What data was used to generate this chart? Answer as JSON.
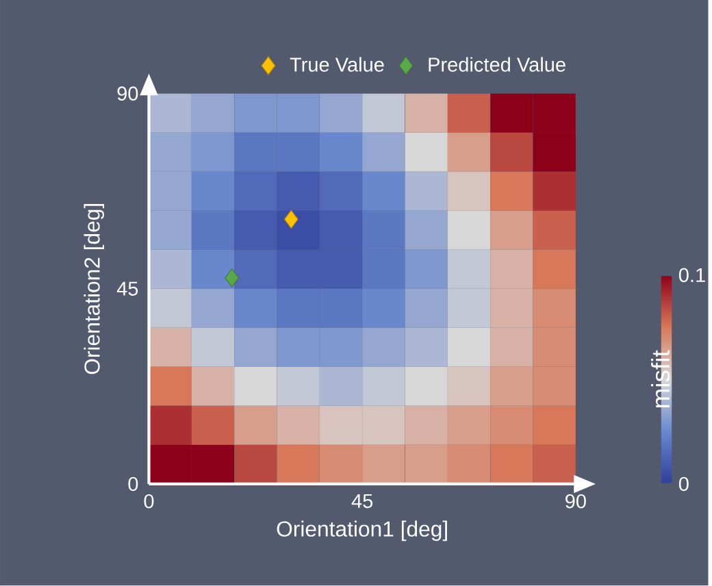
{
  "chart_data": {
    "type": "heatmap",
    "xlabel": "Orientation1 [deg]",
    "ylabel": "Orientation2 [deg]",
    "clabel": "misfit",
    "x": [
      4.5,
      13.5,
      22.5,
      31.5,
      40.5,
      49.5,
      58.5,
      67.5,
      76.5,
      85.5
    ],
    "xlim": [
      0,
      90
    ],
    "ylim": [
      0,
      90
    ],
    "xticks": [
      0,
      45,
      90
    ],
    "yticks": [
      0,
      45,
      90
    ],
    "clim": [
      0,
      0.1
    ],
    "cticks": [
      0,
      0.1
    ],
    "cells": [
      [
        0.04,
        0.035,
        0.03,
        0.03,
        0.035,
        0.045,
        0.06,
        0.08,
        0.1,
        0.1
      ],
      [
        0.035,
        0.03,
        0.02,
        0.02,
        0.025,
        0.035,
        0.05,
        0.065,
        0.085,
        0.1
      ],
      [
        0.035,
        0.025,
        0.015,
        0.01,
        0.015,
        0.025,
        0.04,
        0.055,
        0.075,
        0.09
      ],
      [
        0.035,
        0.02,
        0.01,
        0.005,
        0.01,
        0.02,
        0.035,
        0.05,
        0.065,
        0.08
      ],
      [
        0.04,
        0.025,
        0.015,
        0.01,
        0.01,
        0.02,
        0.03,
        0.045,
        0.06,
        0.075
      ],
      [
        0.045,
        0.035,
        0.025,
        0.02,
        0.02,
        0.025,
        0.035,
        0.045,
        0.06,
        0.07
      ],
      [
        0.06,
        0.045,
        0.035,
        0.03,
        0.03,
        0.035,
        0.04,
        0.05,
        0.06,
        0.07
      ],
      [
        0.075,
        0.06,
        0.05,
        0.045,
        0.04,
        0.045,
        0.05,
        0.055,
        0.065,
        0.07
      ],
      [
        0.09,
        0.08,
        0.065,
        0.06,
        0.055,
        0.055,
        0.06,
        0.065,
        0.07,
        0.075
      ],
      [
        0.1,
        0.1,
        0.085,
        0.075,
        0.07,
        0.065,
        0.065,
        0.07,
        0.075,
        0.08
      ]
    ],
    "series": [
      {
        "type": "scatter",
        "name": "True Value",
        "color": "#ffc000",
        "x": [
          30
        ],
        "values": [
          61
        ]
      },
      {
        "type": "scatter",
        "name": "Predicted Value",
        "color": "#5aa84a",
        "x": [
          17.5
        ],
        "values": [
          47.5
        ]
      }
    ],
    "marker": "diamond",
    "legend": "top right",
    "grid": false
  }
}
